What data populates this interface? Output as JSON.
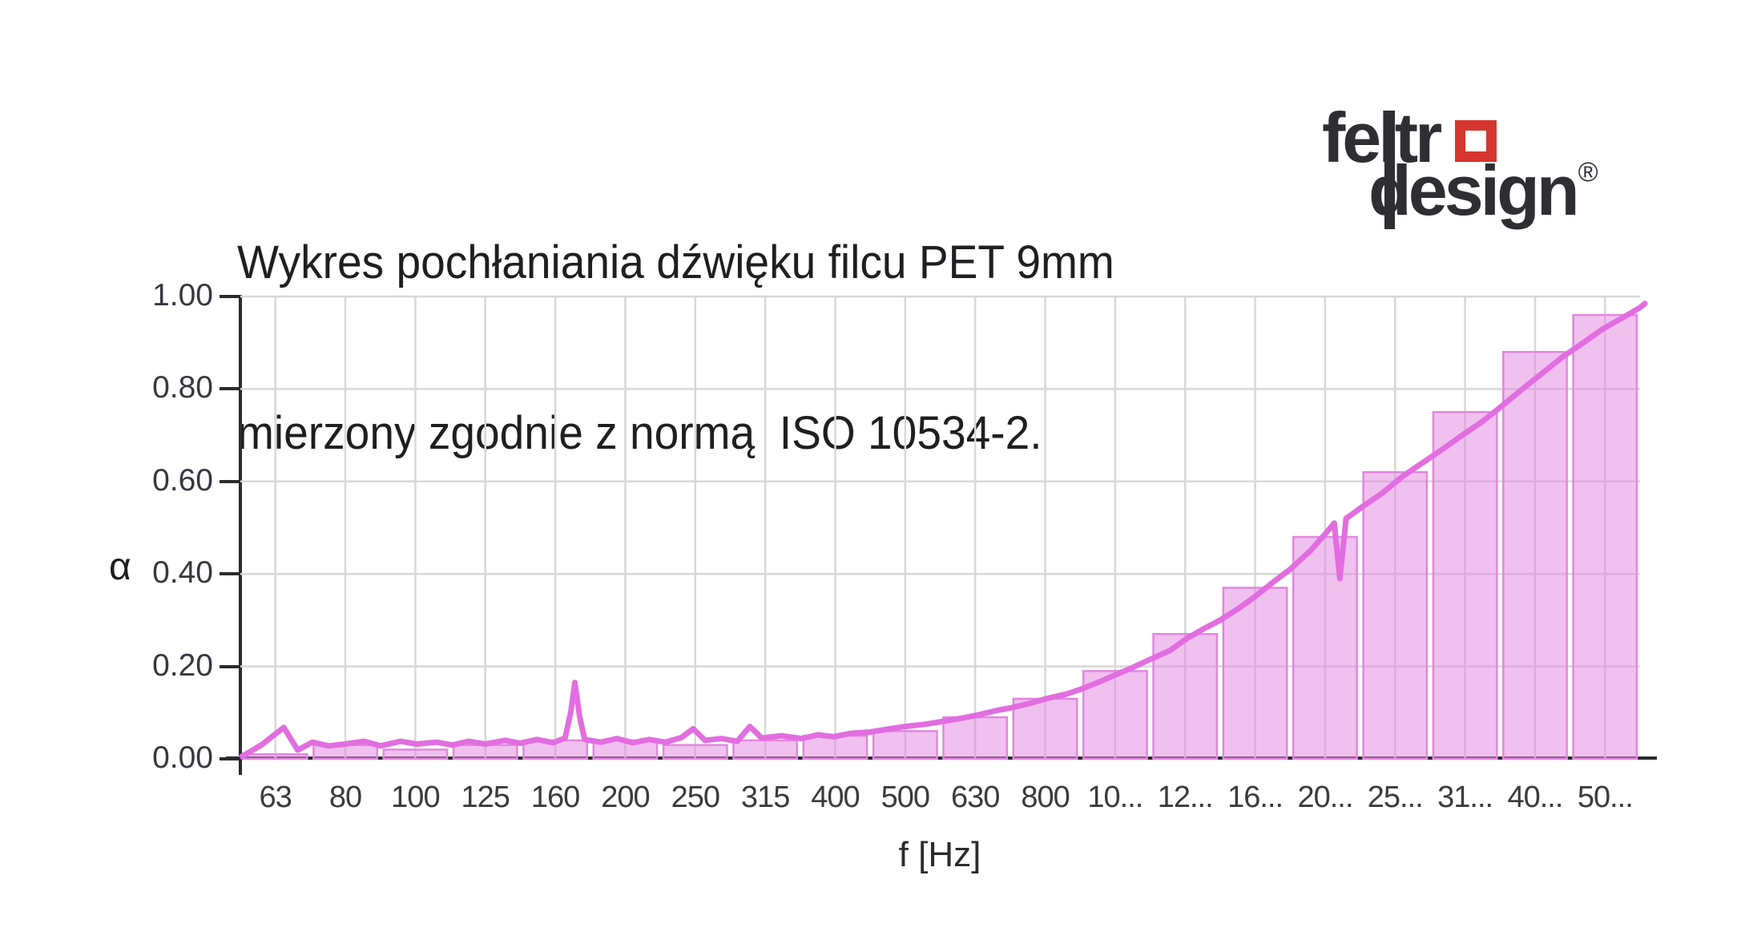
{
  "page": {
    "background": "#ffffff"
  },
  "header": {
    "title_line1": "Wykres pochłaniania dźwięku filcu PET 9mm",
    "title_line2": "mierzony zgodnie z normą  ISO 10534-2."
  },
  "logo": {
    "word1": "feltr",
    "word2": "design",
    "registered": "®",
    "text_color": "#2f2f33",
    "square_color": "#d6362e"
  },
  "chart_data": {
    "type": "bar",
    "subtype": "third-octave bars with raw measurement line overlay",
    "title": "Wykres pochłaniania dźwięku filcu PET 9mm mierzony zgodnie z normą ISO 10534-2.",
    "xlabel": "f [Hz]",
    "ylabel": "α",
    "ylim": [
      0,
      1
    ],
    "ytick_step": 0.2,
    "ytick_labels": [
      "0.00",
      "0.20",
      "0.40",
      "0.60",
      "0.80",
      "1.00"
    ],
    "grid": {
      "horizontal": true,
      "vertical": "category-centers",
      "color": "#d8d8d8"
    },
    "legend_position": "none",
    "categories": [
      "63",
      "80",
      "100",
      "125",
      "160",
      "200",
      "250",
      "315",
      "400",
      "500",
      "630",
      "800",
      "10...",
      "12...",
      "16...",
      "20...",
      "25...",
      "31...",
      "40...",
      "50..."
    ],
    "series": [
      {
        "name": "absorption-coefficient-bars",
        "type": "bar",
        "values": [
          0.01,
          0.03,
          0.02,
          0.03,
          0.04,
          0.04,
          0.03,
          0.04,
          0.05,
          0.06,
          0.09,
          0.13,
          0.19,
          0.27,
          0.37,
          0.48,
          0.62,
          0.75,
          0.88,
          0.96
        ]
      },
      {
        "name": "raw-measurement-curve",
        "type": "line",
        "points_slot_alpha": [
          [
            0.02,
            0.005
          ],
          [
            0.3,
            0.03
          ],
          [
            0.62,
            0.068
          ],
          [
            0.82,
            0.019
          ],
          [
            1.03,
            0.036
          ],
          [
            1.26,
            0.028
          ],
          [
            1.49,
            0.032
          ],
          [
            1.77,
            0.038
          ],
          [
            2.0,
            0.028
          ],
          [
            2.29,
            0.038
          ],
          [
            2.52,
            0.032
          ],
          [
            2.8,
            0.036
          ],
          [
            3.03,
            0.03
          ],
          [
            3.26,
            0.038
          ],
          [
            3.5,
            0.032
          ],
          [
            3.78,
            0.04
          ],
          [
            4.0,
            0.034
          ],
          [
            4.24,
            0.042
          ],
          [
            4.47,
            0.035
          ],
          [
            4.64,
            0.045
          ],
          [
            4.72,
            0.1
          ],
          [
            4.78,
            0.165
          ],
          [
            4.85,
            0.09
          ],
          [
            4.92,
            0.042
          ],
          [
            5.15,
            0.036
          ],
          [
            5.38,
            0.044
          ],
          [
            5.61,
            0.035
          ],
          [
            5.84,
            0.042
          ],
          [
            6.07,
            0.036
          ],
          [
            6.3,
            0.046
          ],
          [
            6.47,
            0.065
          ],
          [
            6.64,
            0.04
          ],
          [
            6.87,
            0.044
          ],
          [
            7.1,
            0.038
          ],
          [
            7.28,
            0.07
          ],
          [
            7.45,
            0.045
          ],
          [
            7.73,
            0.05
          ],
          [
            8.02,
            0.044
          ],
          [
            8.25,
            0.052
          ],
          [
            8.48,
            0.048
          ],
          [
            8.71,
            0.055
          ],
          [
            9.0,
            0.058
          ],
          [
            9.28,
            0.065
          ],
          [
            9.5,
            0.07
          ],
          [
            9.79,
            0.075
          ],
          [
            10.0,
            0.08
          ],
          [
            10.31,
            0.088
          ],
          [
            10.54,
            0.095
          ],
          [
            10.82,
            0.105
          ],
          [
            11.0,
            0.11
          ],
          [
            11.28,
            0.12
          ],
          [
            11.51,
            0.13
          ],
          [
            11.8,
            0.14
          ],
          [
            12.0,
            0.15
          ],
          [
            12.25,
            0.165
          ],
          [
            12.48,
            0.18
          ],
          [
            12.71,
            0.195
          ],
          [
            13.0,
            0.215
          ],
          [
            13.29,
            0.235
          ],
          [
            13.52,
            0.26
          ],
          [
            13.75,
            0.28
          ],
          [
            14.0,
            0.3
          ],
          [
            14.26,
            0.325
          ],
          [
            14.49,
            0.35
          ],
          [
            14.78,
            0.385
          ],
          [
            15.0,
            0.41
          ],
          [
            15.29,
            0.45
          ],
          [
            15.52,
            0.49
          ],
          [
            15.63,
            0.51
          ],
          [
            15.71,
            0.39
          ],
          [
            15.8,
            0.52
          ],
          [
            16.03,
            0.545
          ],
          [
            16.32,
            0.575
          ],
          [
            16.6,
            0.61
          ],
          [
            16.89,
            0.64
          ],
          [
            17.18,
            0.67
          ],
          [
            17.46,
            0.7
          ],
          [
            17.75,
            0.73
          ],
          [
            18.0,
            0.76
          ],
          [
            18.32,
            0.8
          ],
          [
            18.61,
            0.835
          ],
          [
            18.9,
            0.87
          ],
          [
            19.19,
            0.9
          ],
          [
            19.47,
            0.93
          ],
          [
            19.76,
            0.955
          ],
          [
            19.99,
            0.975
          ],
          [
            20.07,
            0.985
          ]
        ]
      }
    ],
    "colors": {
      "bar_fill": "rgba(226,130,224,0.5)",
      "bar_border": "#e287de",
      "line": "#e26de0",
      "grid": "#d8d8d8",
      "axis": "#2b2b2b",
      "tick_label": "#37373f"
    }
  }
}
